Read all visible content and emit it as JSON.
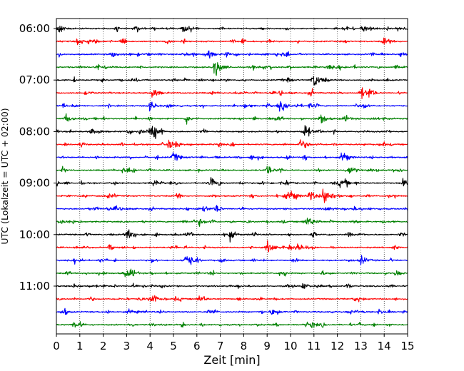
{
  "chart_data": {
    "type": "line",
    "subtype": "helicorder-seismogram",
    "title": "",
    "xlabel": "Zeit  [min]",
    "ylabel": "UTC (Lokalzeit = UTC + 02:00)",
    "xlim": [
      0,
      15
    ],
    "xticks": [
      0,
      1,
      2,
      3,
      4,
      5,
      6,
      7,
      8,
      9,
      10,
      11,
      12,
      13,
      14,
      15
    ],
    "yticks": [
      "06:00",
      "07:00",
      "08:00",
      "09:00",
      "10:00",
      "11:00"
    ],
    "minutes_per_line": 15,
    "line_count": 24,
    "start_time_utc": "06:00",
    "grid": {
      "vertical": "dotted",
      "horizontal": false
    },
    "color_cycle": [
      "#000000",
      "#ff0000",
      "#0000ff",
      "#008000"
    ],
    "events": [
      {
        "line": 0,
        "minute": 0.1,
        "amp": 0.7
      },
      {
        "line": 0,
        "minute": 5.4,
        "amp": 0.8
      },
      {
        "line": 0,
        "minute": 13.2,
        "amp": 0.6
      },
      {
        "line": 1,
        "minute": 14.0,
        "amp": 0.5
      },
      {
        "line": 2,
        "minute": 2.4,
        "amp": 0.5
      },
      {
        "line": 2,
        "minute": 6.5,
        "amp": 0.5
      },
      {
        "line": 2,
        "minute": 14.7,
        "amp": 0.5
      },
      {
        "line": 3,
        "minute": 6.8,
        "amp": 1.6
      },
      {
        "line": 3,
        "minute": 11.6,
        "amp": 0.4
      },
      {
        "line": 4,
        "minute": 11.1,
        "amp": 0.7
      },
      {
        "line": 5,
        "minute": 4.1,
        "amp": 0.9
      },
      {
        "line": 5,
        "minute": 13.0,
        "amp": 1.0
      },
      {
        "line": 6,
        "minute": 4.0,
        "amp": 0.8
      },
      {
        "line": 6,
        "minute": 9.5,
        "amp": 0.6
      },
      {
        "line": 7,
        "minute": 0.4,
        "amp": 0.7
      },
      {
        "line": 7,
        "minute": 11.3,
        "amp": 0.8
      },
      {
        "line": 7,
        "minute": 12.3,
        "amp": 0.6
      },
      {
        "line": 8,
        "minute": 4.1,
        "amp": 0.8
      },
      {
        "line": 8,
        "minute": 10.6,
        "amp": 1.3
      },
      {
        "line": 8,
        "minute": 1.5,
        "amp": 0.5
      },
      {
        "line": 9,
        "minute": 4.8,
        "amp": 0.8
      },
      {
        "line": 9,
        "minute": 10.4,
        "amp": 0.7
      },
      {
        "line": 10,
        "minute": 5.0,
        "amp": 0.9
      },
      {
        "line": 10,
        "minute": 12.2,
        "amp": 0.8
      },
      {
        "line": 11,
        "minute": 9.0,
        "amp": 0.7
      },
      {
        "line": 11,
        "minute": 12.6,
        "amp": 0.6
      },
      {
        "line": 12,
        "minute": 6.6,
        "amp": 0.8
      },
      {
        "line": 12,
        "minute": 9.8,
        "amp": 0.5
      },
      {
        "line": 12,
        "minute": 14.8,
        "amp": 0.6
      },
      {
        "line": 13,
        "minute": 10.0,
        "amp": 0.9
      },
      {
        "line": 13,
        "minute": 10.8,
        "amp": 1.0
      },
      {
        "line": 13,
        "minute": 11.4,
        "amp": 1.6
      },
      {
        "line": 14,
        "minute": 6.3,
        "amp": 0.5
      },
      {
        "line": 14,
        "minute": 11.5,
        "amp": 0.4
      },
      {
        "line": 15,
        "minute": 6.1,
        "amp": 0.6
      },
      {
        "line": 15,
        "minute": 10.7,
        "amp": 0.5
      },
      {
        "line": 16,
        "minute": 3.0,
        "amp": 0.9
      },
      {
        "line": 16,
        "minute": 7.4,
        "amp": 0.8
      },
      {
        "line": 17,
        "minute": 9.0,
        "amp": 0.8
      },
      {
        "line": 17,
        "minute": 10.3,
        "amp": 0.7
      },
      {
        "line": 18,
        "minute": 5.5,
        "amp": 0.8
      },
      {
        "line": 18,
        "minute": 13.0,
        "amp": 0.7
      },
      {
        "line": 19,
        "minute": 2.9,
        "amp": 0.5
      },
      {
        "line": 19,
        "minute": 14.5,
        "amp": 0.4
      },
      {
        "line": 20,
        "minute": 10.5,
        "amp": 0.6
      },
      {
        "line": 21,
        "minute": 4.0,
        "amp": 0.5
      },
      {
        "line": 21,
        "minute": 6.1,
        "amp": 0.5
      },
      {
        "line": 22,
        "minute": 9.2,
        "amp": 0.6
      },
      {
        "line": 22,
        "minute": 13.8,
        "amp": 0.5
      },
      {
        "line": 23,
        "minute": 0.8,
        "amp": 0.6
      },
      {
        "line": 23,
        "minute": 10.9,
        "amp": 0.5
      }
    ]
  }
}
